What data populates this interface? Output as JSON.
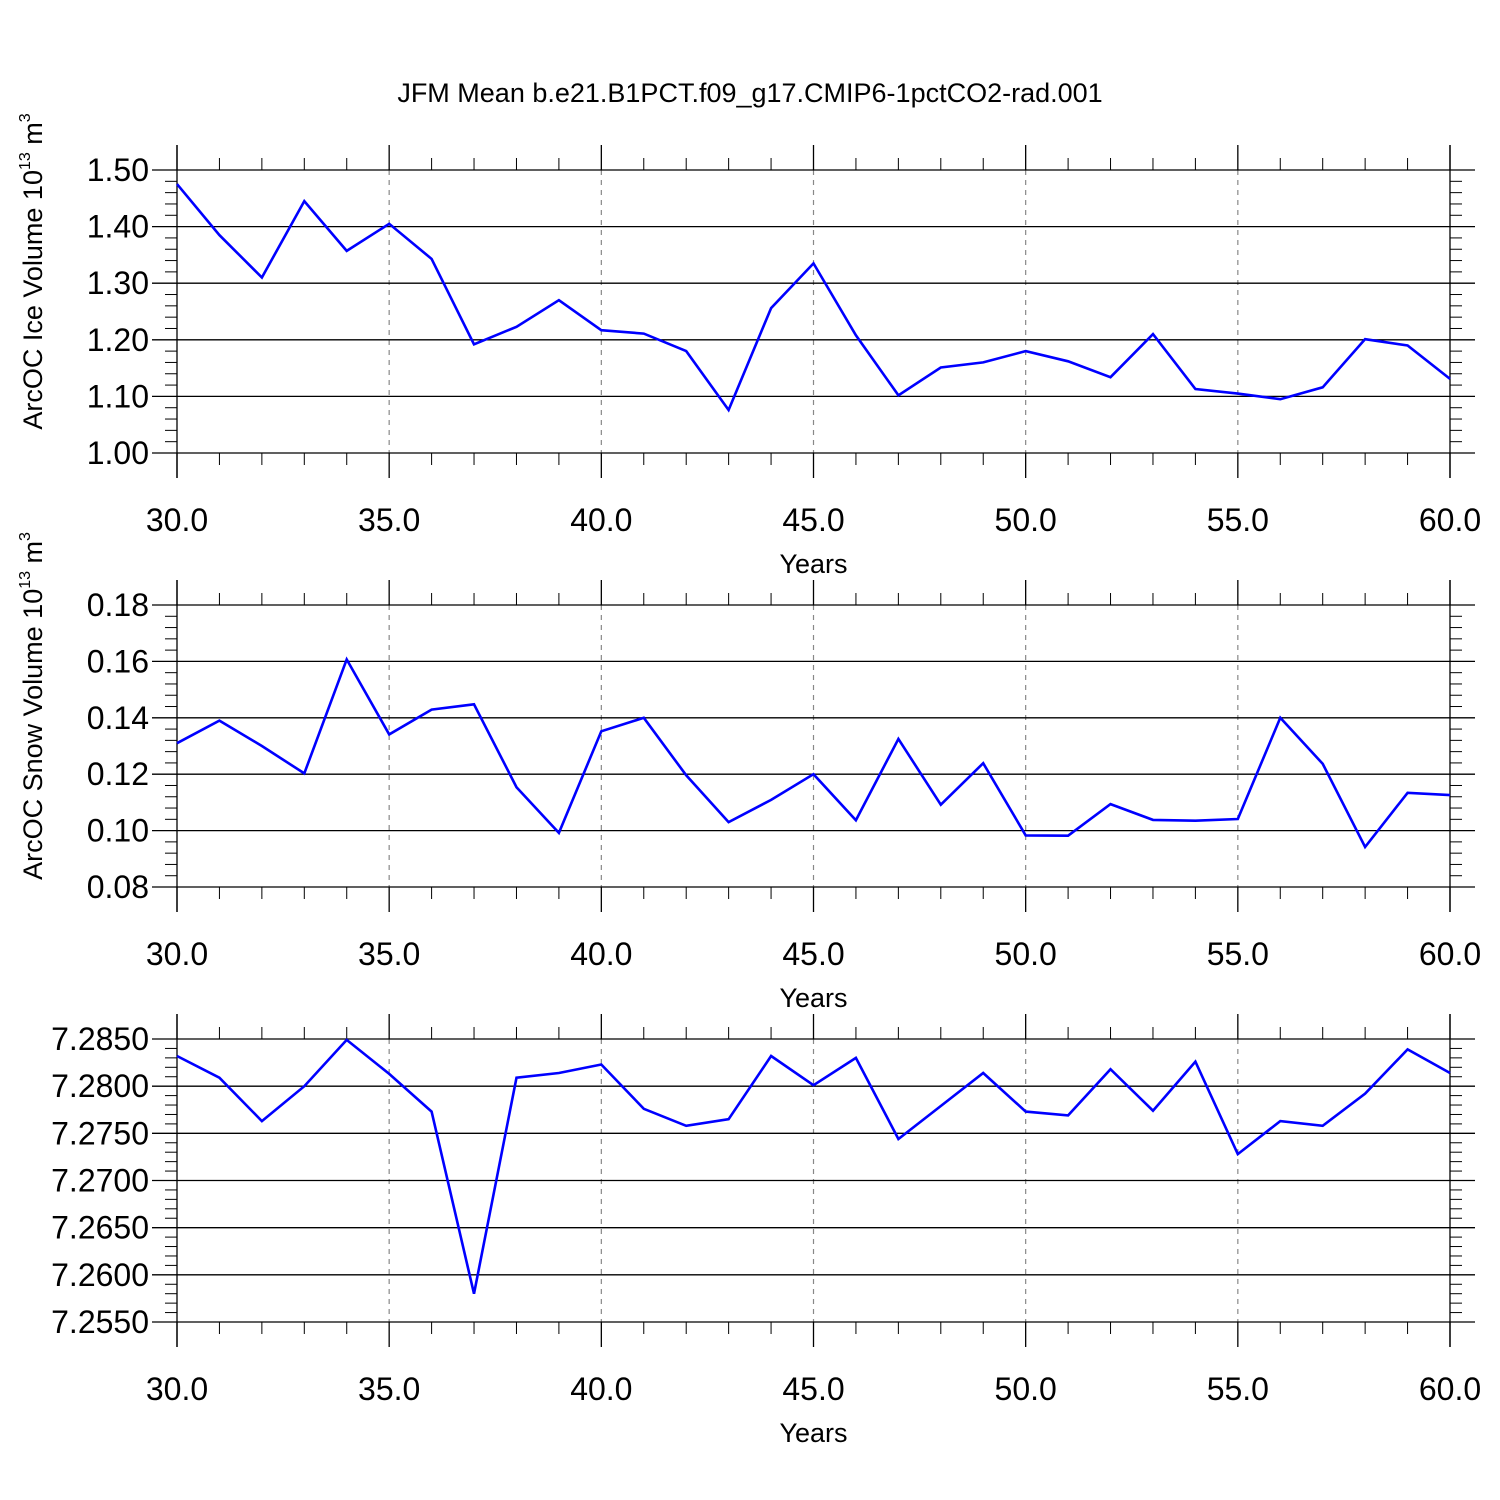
{
  "title": "JFM Mean b.e21.B1PCT.f09_g17.CMIP6-1pctCO2-rad.001",
  "colors": {
    "line": "#0000ff",
    "axis": "#000000",
    "grid": "#888888"
  },
  "chart_data": [
    {
      "type": "line",
      "ylabel": "ArcOC Ice Volume 10",
      "ylabel_sup": "13",
      "ylabel_unit": " m",
      "ylabel_unit_sup": "3",
      "xlabel": "Years",
      "xlim": [
        30,
        60
      ],
      "ylim": [
        1.0,
        1.5
      ],
      "yticks": [
        "1.00",
        "1.10",
        "1.20",
        "1.30",
        "1.40",
        "1.50"
      ],
      "xticks": [
        "30.0",
        "35.0",
        "40.0",
        "45.0",
        "50.0",
        "55.0",
        "60.0"
      ],
      "grid": "x-dashed",
      "x": [
        30,
        31,
        32,
        33,
        34,
        35,
        36,
        37,
        38,
        39,
        40,
        41,
        42,
        43,
        44,
        45,
        46,
        47,
        48,
        49,
        50,
        51,
        52,
        53,
        54,
        55,
        56,
        57,
        58,
        59,
        60
      ],
      "series": [
        {
          "values": [
            1.475,
            1.385,
            1.31,
            1.445,
            1.357,
            1.405,
            1.343,
            1.192,
            1.223,
            1.27,
            1.217,
            1.211,
            1.18,
            1.076,
            1.256,
            1.335,
            1.208,
            1.102,
            1.151,
            1.16,
            1.18,
            1.162,
            1.134,
            1.21,
            1.113,
            1.105,
            1.095,
            1.116,
            1.201,
            1.19,
            1.131
          ]
        }
      ]
    },
    {
      "type": "line",
      "ylabel": "ArcOC Snow Volume 10",
      "ylabel_sup": "13",
      "ylabel_unit": " m",
      "ylabel_unit_sup": "3",
      "xlabel": "Years",
      "xlim": [
        30,
        60
      ],
      "ylim": [
        0.08,
        0.18
      ],
      "yticks": [
        "0.08",
        "0.10",
        "0.12",
        "0.14",
        "0.16",
        "0.18"
      ],
      "xticks": [
        "30.0",
        "35.0",
        "40.0",
        "45.0",
        "50.0",
        "55.0",
        "60.0"
      ],
      "grid": "x-dashed",
      "x": [
        30,
        31,
        32,
        33,
        34,
        35,
        36,
        37,
        38,
        39,
        40,
        41,
        42,
        43,
        44,
        45,
        46,
        47,
        48,
        49,
        50,
        51,
        52,
        53,
        54,
        55,
        56,
        57,
        58,
        59,
        60
      ],
      "series": [
        {
          "values": [
            0.131,
            0.139,
            0.13,
            0.1203,
            0.1607,
            0.1341,
            0.1429,
            0.1448,
            0.1154,
            0.0992,
            0.1352,
            0.14,
            0.1196,
            0.103,
            0.1109,
            0.12,
            0.1037,
            0.1325,
            0.1092,
            0.1239,
            0.0983,
            0.0982,
            0.1094,
            0.1038,
            0.1035,
            0.1041,
            0.14,
            0.1237,
            0.0942,
            0.1134,
            0.1126
          ]
        }
      ]
    },
    {
      "type": "line",
      "ylabel": "",
      "xlabel": "Years",
      "xlim": [
        30,
        60
      ],
      "ylim": [
        7.255,
        7.285
      ],
      "yticks": [
        "7.2550",
        "7.2600",
        "7.2650",
        "7.2700",
        "7.2750",
        "7.2800",
        "7.2850"
      ],
      "xticks": [
        "30.0",
        "35.0",
        "40.0",
        "45.0",
        "50.0",
        "55.0",
        "60.0"
      ],
      "grid": "x-dashed",
      "x": [
        30,
        31,
        32,
        33,
        34,
        35,
        36,
        37,
        38,
        39,
        40,
        41,
        42,
        43,
        44,
        45,
        46,
        47,
        48,
        49,
        50,
        51,
        52,
        53,
        54,
        55,
        56,
        57,
        58,
        59,
        60
      ],
      "series": [
        {
          "values": [
            7.2832,
            7.2809,
            7.2763,
            7.28,
            7.2849,
            7.2813,
            7.2773,
            7.258,
            7.2809,
            7.2814,
            7.2823,
            7.2776,
            7.2758,
            7.2765,
            7.2832,
            7.2801,
            7.283,
            7.2744,
            7.2779,
            7.2814,
            7.2773,
            7.2769,
            7.2818,
            7.2774,
            7.2826,
            7.2728,
            7.2763,
            7.2758,
            7.2792,
            7.2839,
            7.2814
          ]
        }
      ]
    }
  ]
}
